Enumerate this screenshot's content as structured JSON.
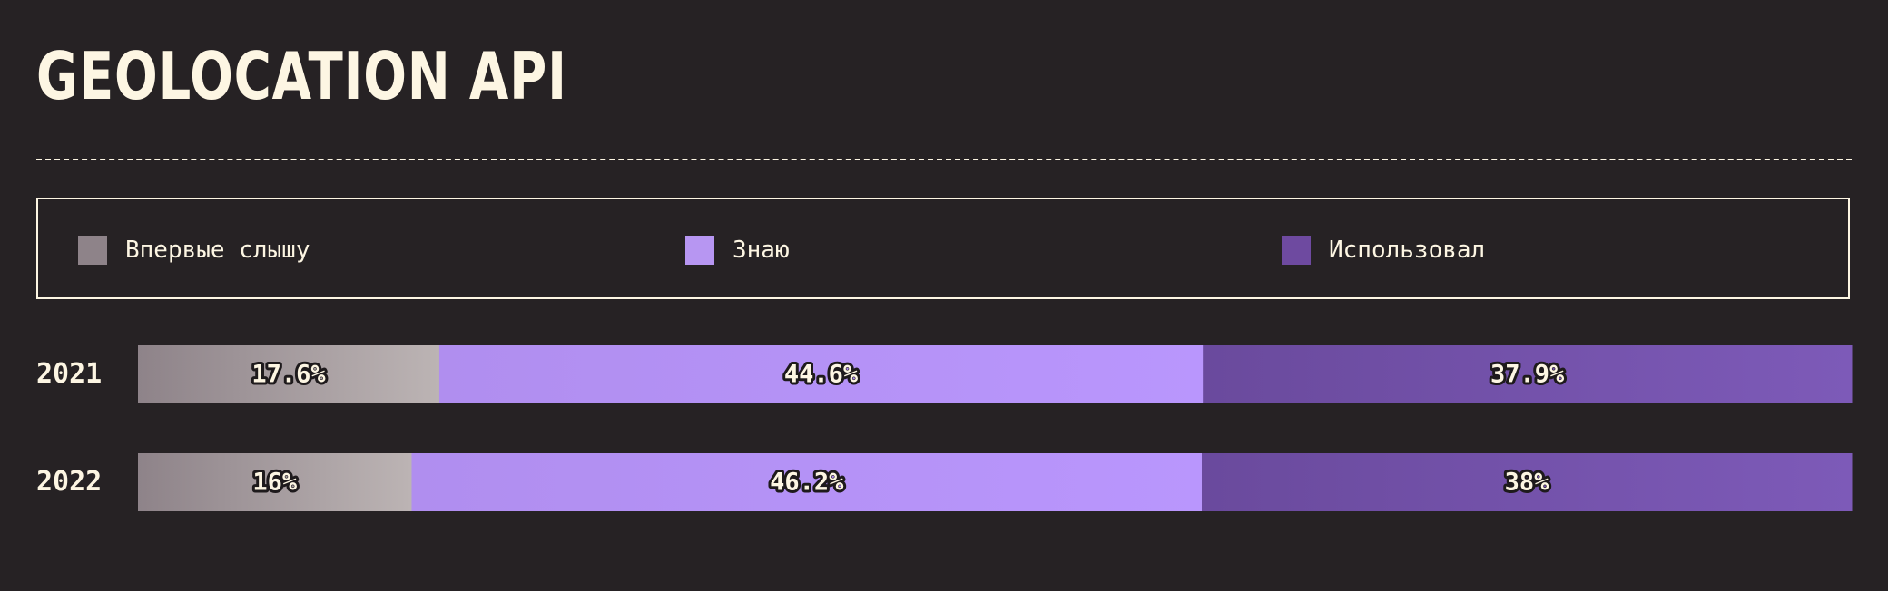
{
  "title": "GEOLOCATION API",
  "legend": [
    {
      "label": "Впервые слышу",
      "color": "#8e8389"
    },
    {
      "label": "Знаю",
      "color": "#b796f2"
    },
    {
      "label": "Использовал",
      "color": "#6e4aa0"
    }
  ],
  "chart_data": {
    "type": "bar",
    "orientation": "horizontal",
    "stacked": true,
    "normalized": true,
    "title": "GEOLOCATION API",
    "categories": [
      "2021",
      "2022"
    ],
    "series": [
      {
        "name": "Впервые слышу",
        "values": [
          17.6,
          16.0
        ],
        "labels": [
          "17.6%",
          "16%"
        ],
        "color_start": "#8e8389",
        "color_end": "#bcb4b4"
      },
      {
        "name": "Знаю",
        "values": [
          44.6,
          46.2
        ],
        "labels": [
          "44.6%",
          "46.2%"
        ],
        "color_start": "#b08eef",
        "color_end": "#b996fd"
      },
      {
        "name": "Использовал",
        "values": [
          37.9,
          38.0
        ],
        "labels": [
          "37.9%",
          "38%"
        ],
        "color_start": "#6a4a9d",
        "color_end": "#7d5ab8"
      }
    ],
    "legend_position": "top",
    "grid": false
  }
}
